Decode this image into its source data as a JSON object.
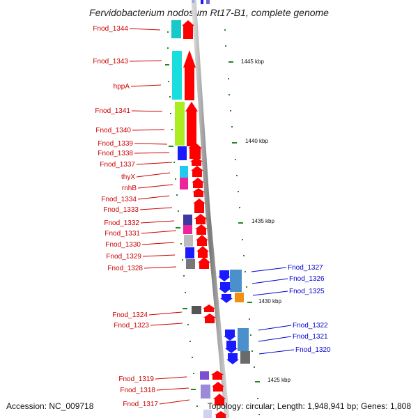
{
  "title": "Fervidobacterium nodosum Rt17-B1, complete genome",
  "footer": {
    "accession": "Accession: NC_009718",
    "info": "Topology: circular; Length: 1,948,941 bp; Genes: 1,808"
  },
  "scale_labels": [
    "1445 kbp",
    "1440 kbp",
    "1435 kbp",
    "1430 kbp",
    "1425 kbp"
  ],
  "left_genes": [
    "Fnod_1344",
    "Fnod_1343",
    "hppA",
    "Fnod_1341",
    "Fnod_1340",
    "Fnod_1339",
    "Fnod_1338",
    "Fnod_1337",
    "thyX",
    "rnhB",
    "Fnod_1334",
    "Fnod_1333",
    "Fnod_1332",
    "Fnod_1331",
    "Fnod_1330",
    "Fnod_1329",
    "Fnod_1328",
    "Fnod_1324",
    "Fnod_1323",
    "Fnod_1319",
    "Fnod_1318",
    "Fnod_1317"
  ],
  "right_genes": [
    "Fnod_1327",
    "Fnod_1326",
    "Fnod_1325",
    "Fnod_1322",
    "Fnod_1321",
    "Fnod_1320"
  ],
  "colors": {
    "left_label": "#cc0000",
    "right_label": "#0000cc",
    "forward_strand": "#ff0000",
    "reverse_strand": "#1a1aff",
    "backbone": "#999999",
    "tick": "#228822"
  }
}
